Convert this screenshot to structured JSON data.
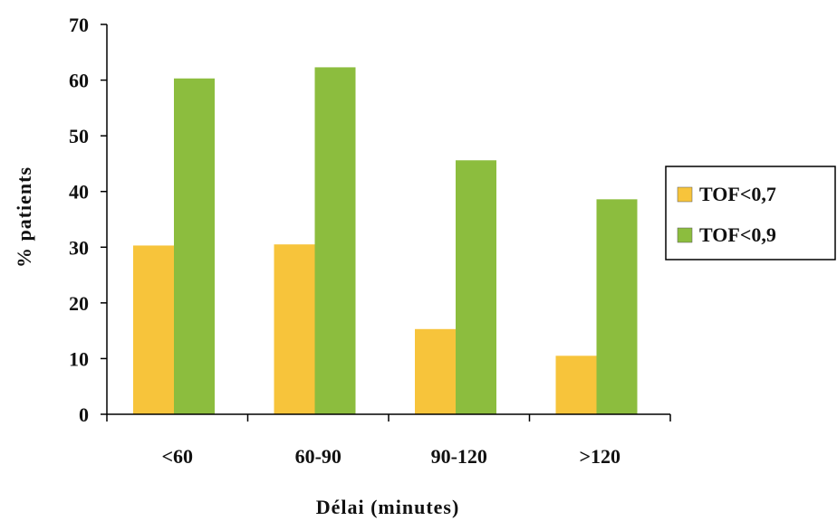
{
  "chart_data": {
    "type": "bar",
    "title": "",
    "xlabel": "Délai (minutes)",
    "ylabel": "% patients",
    "ylim": [
      0,
      70
    ],
    "yticks": [
      0,
      10,
      20,
      30,
      40,
      50,
      60,
      70
    ],
    "grid": false,
    "legend_position": "right",
    "categories": [
      "<60",
      "60-90",
      "90-120",
      ">120"
    ],
    "series": [
      {
        "name": "TOF<0,7",
        "color": "#f7c43b",
        "values": [
          30.3,
          30.5,
          15.3,
          10.5
        ]
      },
      {
        "name": "TOF<0,9",
        "color": "#8cbd3e",
        "values": [
          60.3,
          62.3,
          45.6,
          38.6
        ]
      }
    ]
  }
}
